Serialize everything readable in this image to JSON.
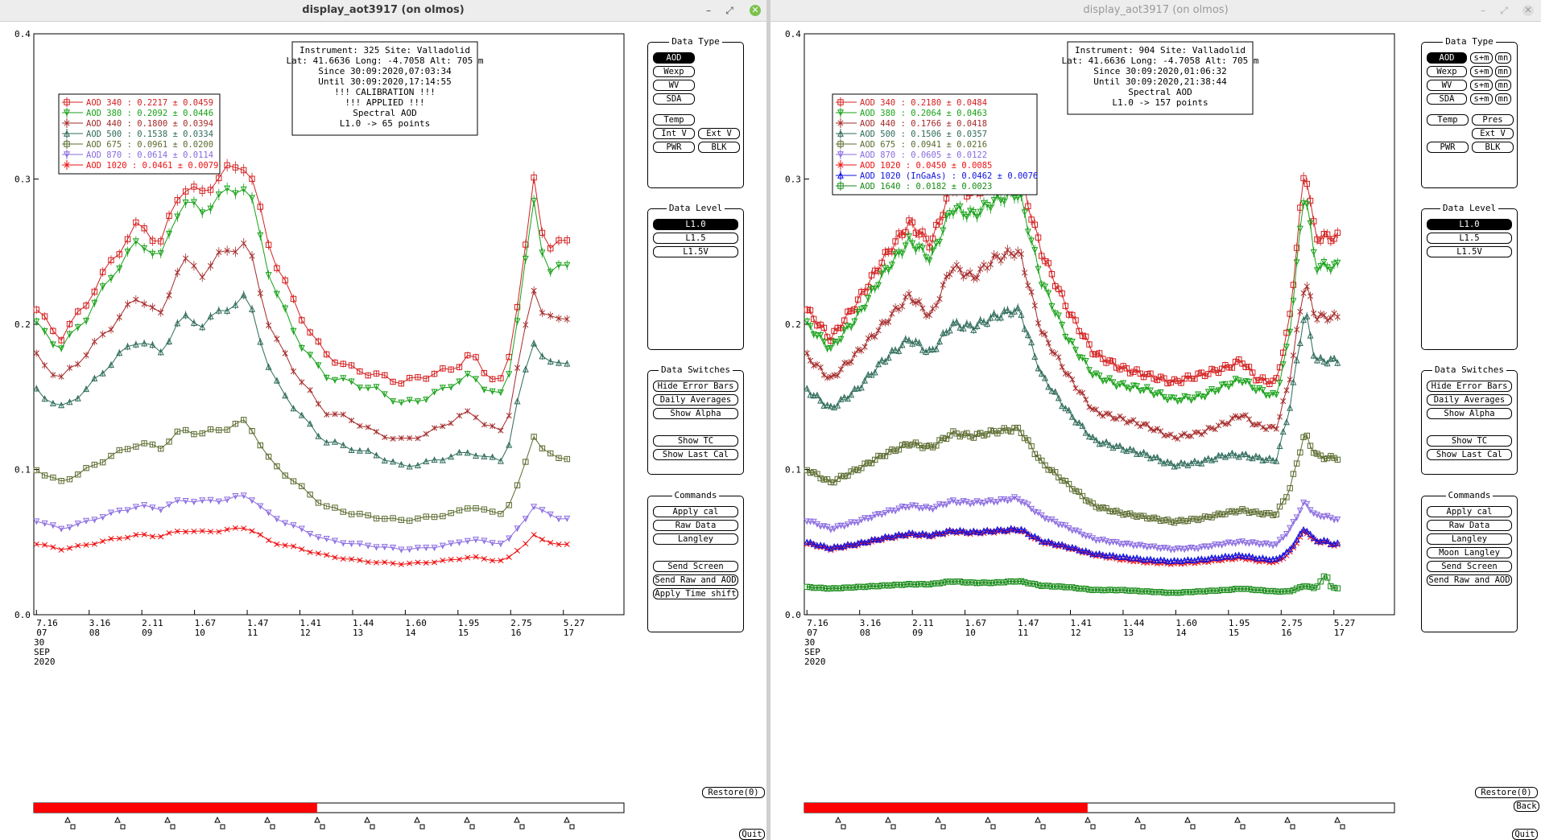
{
  "windows": [
    {
      "title": "display_aot3917 (on olmos)",
      "info": [
        "Instrument: 325 Site: Valladolid",
        "Lat: 41.6636 Long: -4.7058 Alt: 705 m",
        "Since 30:09:2020,07:03:34",
        "Until 30:09:2020,17:14:55",
        "!!! CALIBRATION !!!",
        "!!!   APPLIED   !!!",
        "Spectral AOD",
        "L1.0 -> 65 points"
      ],
      "legend": [
        {
          "label": "AOD 340  : 0.2217 ± 0.0459",
          "color": "#d42020",
          "marker": "square"
        },
        {
          "label": "AOD 380  : 0.2092 ± 0.0446",
          "color": "#17a117",
          "marker": "tri-down"
        },
        {
          "label": "AOD 440  : 0.1800 ± 0.0394",
          "color": "#a52a2a",
          "marker": "x"
        },
        {
          "label": "AOD 500  : 0.1538 ± 0.0334",
          "color": "#2e6b5a",
          "marker": "tri-up"
        },
        {
          "label": "AOD 675  : 0.0961 ± 0.0200",
          "color": "#5a6b2e",
          "marker": "square"
        },
        {
          "label": "AOD 870  : 0.0614 ± 0.0114",
          "color": "#8a6ae0",
          "marker": "tri-down"
        },
        {
          "label": "AOD 1020  : 0.0461 ± 0.0079",
          "color": "#ee1111",
          "marker": "x"
        }
      ],
      "data_type": {
        "title": "Data Type",
        "buttons": [
          "AOD",
          "Wexp",
          "WV",
          "SDA",
          "Temp",
          "Int V",
          "Ext V",
          "PWR",
          "BLK"
        ],
        "active": "AOD"
      },
      "data_level": {
        "title": "Data Level",
        "buttons": [
          "L1.0",
          "L1.5",
          "L1.5V"
        ],
        "active": "L1.0"
      },
      "data_switches": {
        "title": "Data Switches",
        "buttons": [
          "Hide Error Bars",
          "Daily Averages",
          "Show Alpha",
          "Show TC",
          "Show Last Cal"
        ]
      },
      "commands": {
        "title": "Commands",
        "buttons": [
          "Apply cal",
          "Raw Data",
          "Langley",
          "Send Screen",
          "Send Raw and AOD",
          "Apply Time shift"
        ]
      },
      "restore": "Restore(0)",
      "quit": "Quit",
      "date_label": [
        "30",
        "SEP",
        "2020"
      ],
      "progress": 0.48
    },
    {
      "title": "display_aot3917 (on olmos)",
      "info": [
        "Instrument: 904 Site: Valladolid",
        "Lat: 41.6636 Long: -4.7058 Alt: 705 m",
        "Since 30:09:2020,01:06:32",
        "Until 30:09:2020,21:38:44",
        "Spectral AOD",
        "L1.0 -> 157 points"
      ],
      "legend": [
        {
          "label": "AOD 340  : 0.2180 ± 0.0484",
          "color": "#d42020",
          "marker": "square"
        },
        {
          "label": "AOD 380  : 0.2064 ± 0.0463",
          "color": "#17a117",
          "marker": "tri-down"
        },
        {
          "label": "AOD 440  : 0.1766 ± 0.0418",
          "color": "#a52a2a",
          "marker": "x"
        },
        {
          "label": "AOD 500  : 0.1506 ± 0.0357",
          "color": "#2e6b5a",
          "marker": "tri-up"
        },
        {
          "label": "AOD 675  : 0.0941 ± 0.0216",
          "color": "#5a6b2e",
          "marker": "square"
        },
        {
          "label": "AOD 870  : 0.0605 ± 0.0122",
          "color": "#8a6ae0",
          "marker": "tri-down"
        },
        {
          "label": "AOD 1020  : 0.0450 ± 0.0085",
          "color": "#ee1111",
          "marker": "x"
        },
        {
          "label": "AOD 1020 (InGaAs)  : 0.0462 ± 0.0076",
          "color": "#1010e0",
          "marker": "tri-up"
        },
        {
          "label": "AOD 1640  : 0.0182 ± 0.0023",
          "color": "#178a17",
          "marker": "square"
        }
      ],
      "data_type": {
        "title": "Data Type",
        "buttons": [
          "AOD",
          "Wexp",
          "WV",
          "SDA",
          "Temp",
          "Pres",
          "Ext V",
          "PWR",
          "BLK"
        ],
        "extra": "s+m",
        "extra2": "mn",
        "active": "AOD"
      },
      "data_level": {
        "title": "Data Level",
        "buttons": [
          "L1.0",
          "L1.5",
          "L1.5V"
        ],
        "active": "L1.0"
      },
      "data_switches": {
        "title": "Data Switches",
        "buttons": [
          "Hide Error Bars",
          "Daily Averages",
          "Show Alpha",
          "Show TC",
          "Show Last Cal"
        ]
      },
      "commands": {
        "title": "Commands",
        "buttons": [
          "Apply cal",
          "Raw Data",
          "Langley",
          "Moon Langley",
          "Send Screen",
          "Send Raw and AOD"
        ]
      },
      "restore": "Restore(0)",
      "back": "Back",
      "quit": "Quit",
      "date_label": [
        "30",
        "SEP",
        "2020"
      ],
      "progress": 0.48
    }
  ],
  "chart_data": [
    {
      "type": "line",
      "x_ticks": [
        {
          "top": "7.16",
          "bottom": "07"
        },
        {
          "top": "3.16",
          "bottom": "08"
        },
        {
          "top": "2.11",
          "bottom": "09"
        },
        {
          "top": "1.67",
          "bottom": "10"
        },
        {
          "top": "1.47",
          "bottom": "11"
        },
        {
          "top": "1.41",
          "bottom": "12"
        },
        {
          "top": "1.44",
          "bottom": "13"
        },
        {
          "top": "1.60",
          "bottom": "14"
        },
        {
          "top": "1.95",
          "bottom": "15"
        },
        {
          "top": "2.75",
          "bottom": "16"
        },
        {
          "top": "5.27",
          "bottom": "17"
        }
      ],
      "y_ticks": [
        "0.0",
        "0.1",
        "0.2",
        "0.3",
        "0.4"
      ],
      "ylim": [
        0,
        0.4
      ],
      "x_range": [
        7.0,
        18.2
      ],
      "anchor_hours": [
        7.05,
        7.5,
        8.0,
        8.5,
        9.0,
        9.4,
        9.8,
        10.2,
        10.6,
        11.0,
        11.1,
        11.5,
        12.0,
        12.5,
        13.0,
        13.5,
        14.0,
        14.5,
        15.0,
        15.3,
        15.6,
        15.95,
        16.2,
        16.5,
        16.7,
        16.9,
        17.0,
        17.1
      ],
      "series": [
        {
          "name": "AOD 340",
          "color": "#d42020",
          "marker": "square",
          "anchors": [
            0.21,
            0.19,
            0.215,
            0.245,
            0.27,
            0.255,
            0.295,
            0.29,
            0.305,
            0.31,
            0.305,
            0.25,
            0.21,
            0.18,
            0.17,
            0.165,
            0.16,
            0.165,
            0.17,
            0.18,
            0.165,
            0.16,
            0.22,
            0.3,
            0.25,
            0.26,
            0.255,
            0.255
          ]
        },
        {
          "name": "AOD 380",
          "color": "#17a117",
          "marker": "tri-down",
          "anchors": [
            0.2,
            0.183,
            0.205,
            0.235,
            0.258,
            0.245,
            0.285,
            0.278,
            0.29,
            0.295,
            0.29,
            0.23,
            0.19,
            0.165,
            0.16,
            0.155,
            0.145,
            0.15,
            0.16,
            0.165,
            0.155,
            0.15,
            0.21,
            0.285,
            0.24,
            0.235,
            0.24,
            0.24
          ]
        },
        {
          "name": "AOD 440",
          "color": "#a52a2a",
          "marker": "x",
          "anchors": [
            0.178,
            0.162,
            0.18,
            0.2,
            0.22,
            0.205,
            0.245,
            0.235,
            0.25,
            0.255,
            0.25,
            0.195,
            0.165,
            0.14,
            0.135,
            0.125,
            0.12,
            0.125,
            0.135,
            0.14,
            0.13,
            0.125,
            0.175,
            0.225,
            0.205,
            0.205,
            0.2,
            0.205
          ]
        },
        {
          "name": "AOD 500",
          "color": "#2e6b5a",
          "marker": "tri-up",
          "anchors": [
            0.155,
            0.142,
            0.155,
            0.175,
            0.19,
            0.18,
            0.205,
            0.2,
            0.21,
            0.218,
            0.215,
            0.165,
            0.14,
            0.12,
            0.115,
            0.11,
            0.102,
            0.105,
            0.11,
            0.112,
            0.108,
            0.106,
            0.15,
            0.19,
            0.175,
            0.17,
            0.175,
            0.175
          ]
        },
        {
          "name": "AOD 675",
          "color": "#5a6b2e",
          "marker": "square",
          "anchors": [
            0.1,
            0.091,
            0.1,
            0.11,
            0.118,
            0.115,
            0.127,
            0.125,
            0.128,
            0.133,
            0.13,
            0.105,
            0.09,
            0.075,
            0.07,
            0.067,
            0.065,
            0.067,
            0.07,
            0.075,
            0.071,
            0.07,
            0.09,
            0.125,
            0.11,
            0.11,
            0.108,
            0.108
          ]
        },
        {
          "name": "AOD 870",
          "color": "#8a6ae0",
          "marker": "tri-down",
          "anchors": [
            0.065,
            0.059,
            0.064,
            0.07,
            0.075,
            0.073,
            0.079,
            0.078,
            0.079,
            0.082,
            0.081,
            0.068,
            0.06,
            0.052,
            0.049,
            0.047,
            0.045,
            0.046,
            0.049,
            0.052,
            0.05,
            0.049,
            0.06,
            0.075,
            0.07,
            0.068,
            0.066,
            0.066
          ]
        },
        {
          "name": "AOD 1020",
          "color": "#ee1111",
          "marker": "x",
          "anchors": [
            0.049,
            0.045,
            0.048,
            0.052,
            0.055,
            0.054,
            0.058,
            0.057,
            0.058,
            0.06,
            0.059,
            0.05,
            0.046,
            0.041,
            0.038,
            0.036,
            0.035,
            0.036,
            0.038,
            0.04,
            0.038,
            0.037,
            0.045,
            0.055,
            0.05,
            0.05,
            0.048,
            0.048
          ]
        }
      ],
      "points": 65
    },
    {
      "type": "line",
      "x_ticks": [
        {
          "top": "7.16",
          "bottom": "07"
        },
        {
          "top": "3.16",
          "bottom": "08"
        },
        {
          "top": "2.11",
          "bottom": "09"
        },
        {
          "top": "1.67",
          "bottom": "10"
        },
        {
          "top": "1.47",
          "bottom": "11"
        },
        {
          "top": "1.41",
          "bottom": "12"
        },
        {
          "top": "1.44",
          "bottom": "13"
        },
        {
          "top": "1.60",
          "bottom": "14"
        },
        {
          "top": "1.95",
          "bottom": "15"
        },
        {
          "top": "2.75",
          "bottom": "16"
        },
        {
          "top": "5.27",
          "bottom": "17"
        }
      ],
      "y_ticks": [
        "0.0",
        "0.1",
        "0.2",
        "0.3",
        "0.4"
      ],
      "ylim": [
        0,
        0.4
      ],
      "x_range": [
        7.0,
        18.2
      ],
      "anchor_hours": [
        7.05,
        7.5,
        8.0,
        8.5,
        9.0,
        9.4,
        9.8,
        10.2,
        10.6,
        11.0,
        11.1,
        11.5,
        12.0,
        12.5,
        13.0,
        13.5,
        14.0,
        14.5,
        15.0,
        15.3,
        15.6,
        15.95,
        16.2,
        16.5,
        16.7,
        16.9,
        17.0,
        17.1
      ],
      "series": [
        {
          "name": "AOD 340",
          "color": "#d42020",
          "marker": "square",
          "anchors": [
            0.21,
            0.19,
            0.215,
            0.245,
            0.27,
            0.255,
            0.295,
            0.29,
            0.3,
            0.305,
            0.302,
            0.25,
            0.21,
            0.18,
            0.17,
            0.165,
            0.16,
            0.165,
            0.17,
            0.175,
            0.162,
            0.16,
            0.2,
            0.31,
            0.26,
            0.26,
            0.26,
            0.26
          ]
        },
        {
          "name": "AOD 380",
          "color": "#17a117",
          "marker": "tri-down",
          "anchors": [
            0.2,
            0.183,
            0.205,
            0.235,
            0.258,
            0.245,
            0.28,
            0.275,
            0.285,
            0.29,
            0.288,
            0.23,
            0.19,
            0.165,
            0.158,
            0.155,
            0.148,
            0.15,
            0.158,
            0.162,
            0.155,
            0.15,
            0.19,
            0.295,
            0.24,
            0.24,
            0.24,
            0.24
          ]
        },
        {
          "name": "AOD 440",
          "color": "#a52a2a",
          "marker": "x",
          "anchors": [
            0.178,
            0.162,
            0.18,
            0.2,
            0.22,
            0.205,
            0.24,
            0.232,
            0.245,
            0.25,
            0.248,
            0.195,
            0.165,
            0.14,
            0.135,
            0.13,
            0.122,
            0.125,
            0.132,
            0.138,
            0.13,
            0.128,
            0.16,
            0.23,
            0.205,
            0.205,
            0.205,
            0.205
          ]
        },
        {
          "name": "AOD 500",
          "color": "#2e6b5a",
          "marker": "tri-up",
          "anchors": [
            0.155,
            0.142,
            0.155,
            0.175,
            0.19,
            0.18,
            0.2,
            0.198,
            0.205,
            0.21,
            0.208,
            0.165,
            0.14,
            0.12,
            0.115,
            0.11,
            0.103,
            0.105,
            0.11,
            0.11,
            0.108,
            0.106,
            0.14,
            0.21,
            0.175,
            0.175,
            0.175,
            0.175
          ]
        },
        {
          "name": "AOD 675",
          "color": "#5a6b2e",
          "marker": "square",
          "anchors": [
            0.1,
            0.091,
            0.1,
            0.11,
            0.118,
            0.115,
            0.125,
            0.123,
            0.126,
            0.128,
            0.127,
            0.105,
            0.09,
            0.075,
            0.07,
            0.067,
            0.064,
            0.066,
            0.07,
            0.072,
            0.07,
            0.069,
            0.085,
            0.125,
            0.11,
            0.108,
            0.108,
            0.108
          ]
        },
        {
          "name": "AOD 870",
          "color": "#8a6ae0",
          "marker": "tri-down",
          "anchors": [
            0.065,
            0.059,
            0.064,
            0.07,
            0.075,
            0.073,
            0.078,
            0.077,
            0.078,
            0.08,
            0.079,
            0.068,
            0.06,
            0.052,
            0.049,
            0.047,
            0.045,
            0.046,
            0.049,
            0.05,
            0.049,
            0.048,
            0.058,
            0.078,
            0.068,
            0.068,
            0.066,
            0.066
          ]
        },
        {
          "name": "AOD 1020",
          "color": "#ee1111",
          "marker": "x",
          "anchors": [
            0.049,
            0.045,
            0.048,
            0.052,
            0.055,
            0.054,
            0.057,
            0.056,
            0.057,
            0.058,
            0.058,
            0.05,
            0.046,
            0.041,
            0.038,
            0.036,
            0.035,
            0.036,
            0.038,
            0.039,
            0.037,
            0.036,
            0.042,
            0.058,
            0.05,
            0.05,
            0.048,
            0.048
          ]
        },
        {
          "name": "AOD 1020 (InGaAs)",
          "color": "#1010e0",
          "marker": "tri-up",
          "anchors": [
            0.05,
            0.046,
            0.049,
            0.053,
            0.056,
            0.055,
            0.058,
            0.057,
            0.058,
            0.059,
            0.059,
            0.051,
            0.047,
            0.042,
            0.04,
            0.038,
            0.037,
            0.038,
            0.04,
            0.041,
            0.039,
            0.038,
            0.044,
            0.06,
            0.051,
            0.051,
            0.049,
            0.049
          ]
        },
        {
          "name": "AOD 1640",
          "color": "#178a17",
          "marker": "square",
          "anchors": [
            0.019,
            0.018,
            0.019,
            0.02,
            0.021,
            0.021,
            0.023,
            0.022,
            0.022,
            0.023,
            0.023,
            0.02,
            0.019,
            0.017,
            0.017,
            0.016,
            0.015,
            0.016,
            0.017,
            0.018,
            0.017,
            0.016,
            0.016,
            0.02,
            0.018,
            0.028,
            0.019,
            0.018
          ]
        }
      ],
      "points": 157
    }
  ]
}
